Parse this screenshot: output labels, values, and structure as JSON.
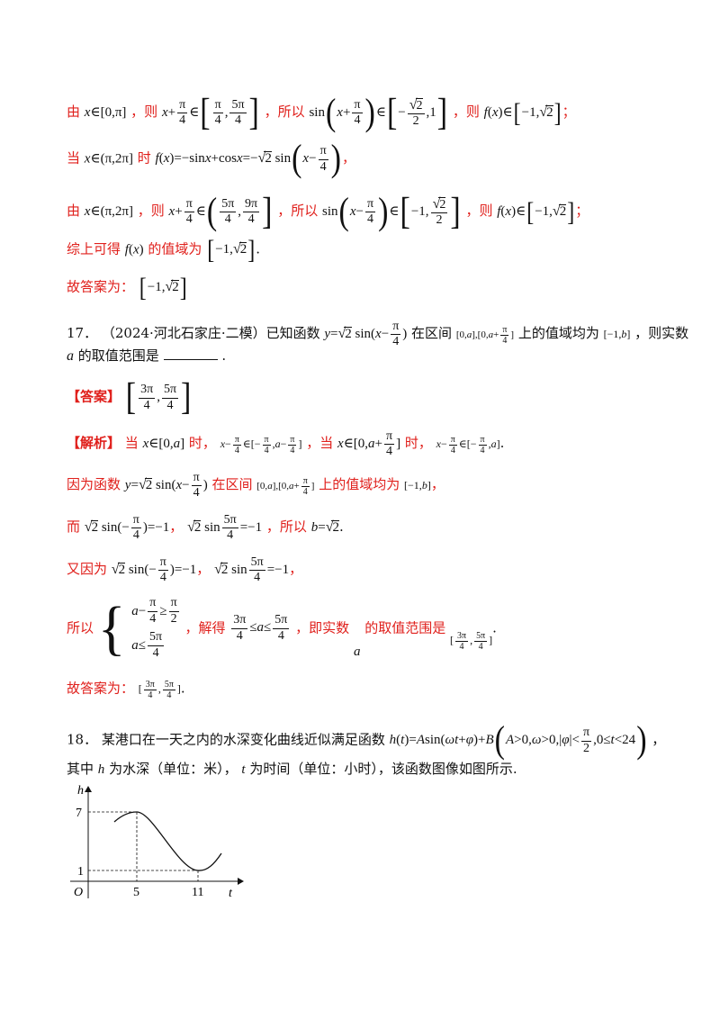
{
  "lines": {
    "l1": {
      "t1": "由",
      "t2": "，则",
      "t3": "，所以",
      "t4": "，则"
    },
    "l2": {
      "t1": "当",
      "t2": "时"
    },
    "l3": {
      "t1": "由",
      "t2": "，则",
      "t3": "，所以",
      "t4": "，则"
    },
    "l4": {
      "t1": "综上可得",
      "t2": "的值域为"
    },
    "l5": {
      "t1": "故答案为："
    },
    "q17": {
      "num": "17．",
      "src": "（2024·河北石家庄·二模）已知函数",
      "t2": "在区间",
      "t3": "上的值域均为",
      "t4": "，则实数",
      "t5": "的取值范围是",
      "end": "."
    },
    "ans17": {
      "label": "【答案】"
    },
    "sol1": {
      "label": "【解析】",
      "t1": "当",
      "t2": "时，",
      "t3": "，当",
      "t4": "时，"
    },
    "sol2": {
      "t1": "因为函数",
      "t2": "在区间",
      "t3": "上的值域均为"
    },
    "sol3": {
      "t1": "而",
      "t2": "，所以"
    },
    "sol4": {
      "t1": "又因为"
    },
    "sol5": {
      "t1": "所以",
      "t2": "，解得",
      "t3": "，即实数",
      "t4": "的取值范围是"
    },
    "sol6": {
      "t1": "故答案为："
    },
    "q18": {
      "num": "18．",
      "t1": "某港口在一天之内的水深变化曲线近似满足函数",
      "t2": "，"
    },
    "q18b": {
      "t1": "其中",
      "t2": "为水深（单位：米），",
      "t3": "为时间（单位：小时），该函数图像如图所示."
    }
  },
  "graph": {
    "ylabel": "h",
    "xlabel": "t",
    "origin": "O",
    "y_ticks": [
      "7",
      "1"
    ],
    "x_ticks": [
      "5",
      "11"
    ]
  },
  "colors": {
    "answer": "#e0201c",
    "text": "#111111"
  }
}
